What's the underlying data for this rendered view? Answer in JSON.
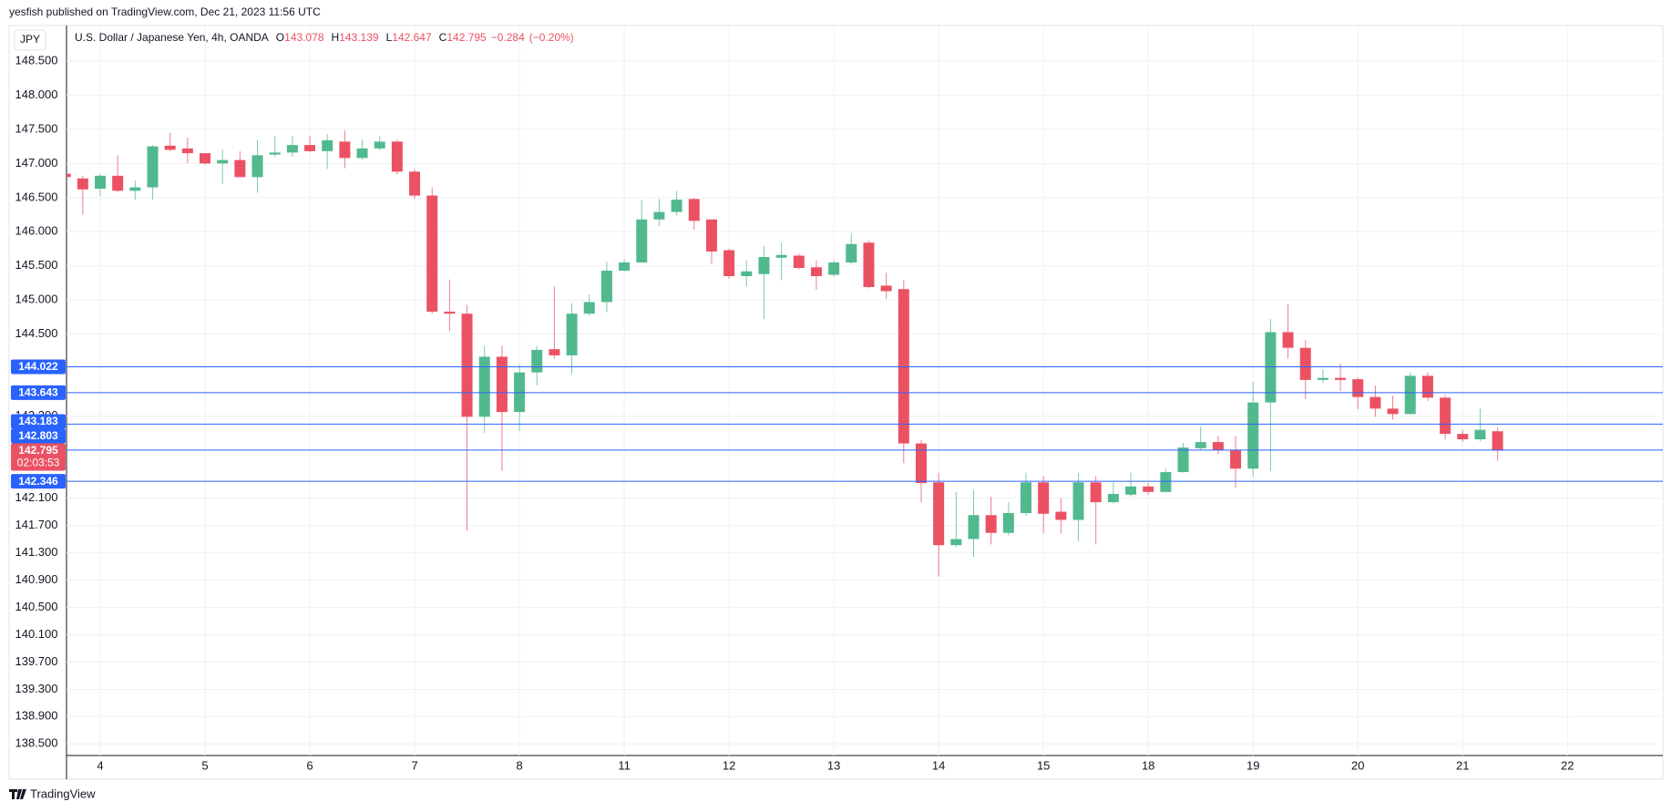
{
  "header": {
    "published": "yesfish published on TradingView.com, Dec 21, 2023 11:56 UTC",
    "brand": "TradingView"
  },
  "chart_data": {
    "type": "candlestick",
    "title": "U.S. Dollar / Japanese Yen, 4h, OANDA",
    "currency": "JPY",
    "legend": [
      {
        "prefix": "O",
        "value": 143.078
      },
      {
        "prefix": "H",
        "value": 143.139
      },
      {
        "prefix": "L",
        "value": 142.647
      },
      {
        "prefix": "C",
        "value": 142.795
      }
    ],
    "change": {
      "value": -0.284,
      "label": "−0.284"
    },
    "change_pct": {
      "value": -0.2,
      "label": "(−0.20%)"
    },
    "up_color": "#52b98f",
    "down_color": "#ea5264",
    "line_color": "#2962ff",
    "grid": true,
    "categories": [
      null,
      null,
      "4",
      null,
      null,
      null,
      null,
      null,
      "5",
      null,
      null,
      null,
      null,
      null,
      "6",
      null,
      null,
      null,
      null,
      null,
      "7",
      null,
      null,
      null,
      null,
      null,
      "8",
      null,
      null,
      null,
      null,
      null,
      "11",
      null,
      null,
      null,
      null,
      null,
      "12",
      null,
      null,
      null,
      null,
      null,
      "13",
      null,
      null,
      null,
      null,
      null,
      "14",
      null,
      null,
      null,
      null,
      null,
      "15",
      null,
      null,
      null,
      null,
      null,
      "18",
      null,
      null,
      null,
      null,
      null,
      "19",
      null,
      null,
      null,
      null,
      null,
      "20",
      null,
      null,
      null,
      null,
      null,
      "21",
      null,
      null,
      null,
      null,
      null,
      "22"
    ],
    "open": [
      146.85,
      146.78,
      146.63,
      146.82,
      146.6,
      146.65,
      147.26,
      147.22,
      147.15,
      147.0,
      147.05,
      146.8,
      147.13,
      147.16,
      147.27,
      147.18,
      147.32,
      147.08,
      147.22,
      147.32,
      146.88,
      146.53,
      144.83,
      144.8,
      143.29,
      144.17,
      143.36,
      143.94,
      144.28,
      144.19,
      144.8,
      144.97,
      145.43,
      145.55,
      146.18,
      146.29,
      146.48,
      146.18,
      145.73,
      145.35,
      145.38,
      145.62,
      145.65,
      145.48,
      145.37,
      145.55,
      145.84,
      145.21,
      145.16,
      142.9,
      142.33,
      141.41,
      141.5,
      141.85,
      141.59,
      141.88,
      142.33,
      141.9,
      141.78,
      142.33,
      142.04,
      142.15,
      142.27,
      142.19,
      142.48,
      142.83,
      142.92,
      142.8,
      142.53,
      143.5,
      144.53,
      144.3,
      143.83,
      143.86,
      143.84,
      143.58,
      143.41,
      143.33,
      143.89,
      143.57,
      143.04,
      142.96,
      143.078,
      null,
      null,
      null,
      null
    ],
    "high": [
      146.88,
      146.82,
      146.85,
      147.12,
      146.75,
      147.27,
      147.45,
      147.38,
      147.15,
      147.2,
      147.18,
      147.35,
      147.4,
      147.4,
      147.4,
      147.43,
      147.48,
      147.35,
      147.4,
      147.35,
      146.92,
      146.65,
      145.3,
      144.93,
      144.33,
      144.33,
      144.06,
      144.33,
      145.2,
      144.95,
      145.08,
      145.56,
      145.6,
      146.47,
      146.48,
      146.6,
      146.49,
      146.18,
      145.75,
      145.58,
      145.79,
      145.84,
      145.68,
      145.58,
      145.58,
      145.98,
      145.87,
      145.4,
      145.29,
      142.95,
      142.47,
      142.19,
      142.22,
      142.12,
      142.04,
      142.47,
      142.42,
      142.1,
      142.47,
      142.42,
      142.33,
      142.47,
      142.32,
      142.53,
      142.91,
      143.15,
      143.01,
      143.01,
      143.8,
      144.72,
      144.95,
      144.41,
      143.99,
      144.07,
      143.87,
      143.75,
      143.6,
      143.94,
      143.94,
      143.61,
      143.1,
      143.41,
      143.139,
      null,
      null,
      null,
      null
    ],
    "low": [
      146.78,
      146.25,
      146.52,
      146.58,
      146.47,
      146.47,
      147.18,
      147.0,
      146.98,
      146.7,
      146.8,
      146.57,
      147.1,
      147.1,
      147.16,
      146.92,
      146.93,
      147.06,
      147.19,
      146.84,
      146.48,
      144.8,
      144.55,
      141.62,
      143.05,
      142.5,
      143.08,
      143.75,
      144.14,
      143.92,
      144.77,
      144.82,
      145.42,
      145.55,
      146.08,
      146.24,
      146.03,
      145.53,
      145.31,
      145.2,
      144.72,
      145.29,
      145.45,
      145.15,
      145.34,
      145.52,
      145.17,
      145.02,
      142.61,
      142.04,
      140.95,
      141.38,
      141.24,
      141.42,
      141.55,
      141.84,
      141.59,
      141.58,
      141.47,
      141.42,
      142.02,
      142.12,
      142.15,
      142.18,
      142.47,
      142.8,
      142.74,
      142.25,
      142.41,
      142.5,
      144.14,
      143.55,
      143.78,
      143.67,
      143.4,
      143.29,
      143.25,
      143.33,
      143.52,
      142.96,
      142.92,
      142.93,
      142.647,
      null,
      null,
      null,
      null
    ],
    "close": [
      146.8,
      146.62,
      146.82,
      146.6,
      146.65,
      147.25,
      147.2,
      147.15,
      147.0,
      147.05,
      146.8,
      147.12,
      147.16,
      147.27,
      147.18,
      147.34,
      147.08,
      147.22,
      147.32,
      146.88,
      146.53,
      144.83,
      144.8,
      143.29,
      144.17,
      143.36,
      143.94,
      144.27,
      144.19,
      144.8,
      144.97,
      145.43,
      145.55,
      146.18,
      146.29,
      146.47,
      146.16,
      145.71,
      145.35,
      145.42,
      145.63,
      145.66,
      145.47,
      145.35,
      145.55,
      145.82,
      145.19,
      145.13,
      142.9,
      142.32,
      141.41,
      141.5,
      141.85,
      141.59,
      141.88,
      142.33,
      141.87,
      141.78,
      142.33,
      142.04,
      142.16,
      142.27,
      142.19,
      142.48,
      142.84,
      142.92,
      142.8,
      142.53,
      143.5,
      144.53,
      144.3,
      143.83,
      143.86,
      143.83,
      143.58,
      143.41,
      143.33,
      143.89,
      143.57,
      143.04,
      142.96,
      143.1,
      142.795,
      null,
      null,
      null,
      null
    ],
    "ylim": [
      138.33,
      149.02
    ],
    "yticks": [
      {
        "value": 148.5,
        "label": "148.500"
      },
      {
        "value": 148,
        "label": "148.000"
      },
      {
        "value": 147.5,
        "label": "147.500"
      },
      {
        "value": 147,
        "label": "147.000"
      },
      {
        "value": 146.5,
        "label": "146.500"
      },
      {
        "value": 146,
        "label": "146.000"
      },
      {
        "value": 145.5,
        "label": "145.500"
      },
      {
        "value": 145,
        "label": "145.000"
      },
      {
        "value": 144.5,
        "label": "144.500"
      },
      {
        "value": 143.3,
        "label": "143.300"
      },
      {
        "value": 142.1,
        "label": "142.100"
      },
      {
        "value": 141.7,
        "label": "141.700"
      },
      {
        "value": 141.3,
        "label": "141.300"
      },
      {
        "value": 140.9,
        "label": "140.900"
      },
      {
        "value": 140.5,
        "label": "140.500"
      },
      {
        "value": 140.1,
        "label": "140.100"
      },
      {
        "value": 139.7,
        "label": "139.700"
      },
      {
        "value": 139.3,
        "label": "139.300"
      },
      {
        "value": 138.9,
        "label": "138.900"
      },
      {
        "value": 138.5,
        "label": "138.500"
      }
    ],
    "price_lines": [
      144.022,
      143.643,
      143.183,
      142.803,
      142.346
    ],
    "last_price": 142.795,
    "countdown": "02:03:53"
  }
}
